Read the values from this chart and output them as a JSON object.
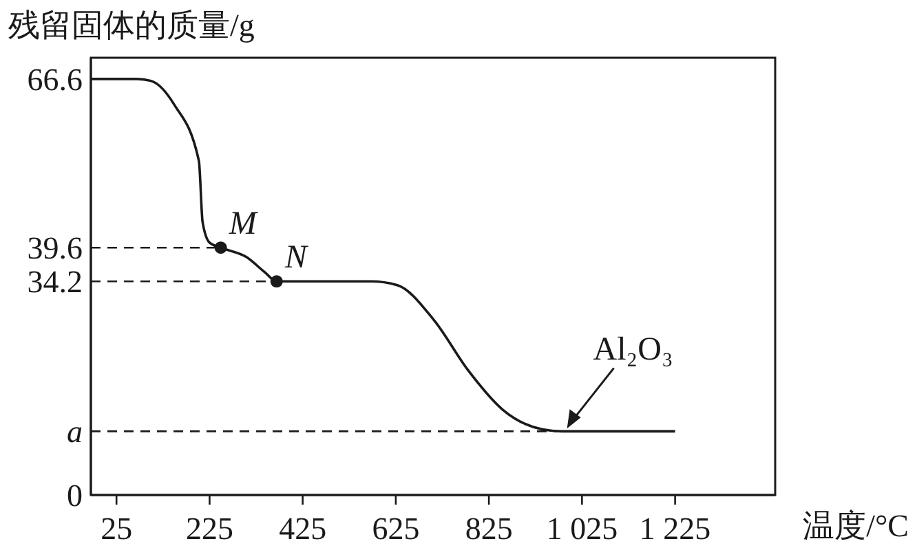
{
  "chart_data": {
    "type": "line",
    "ylabel": "残留固体的质量/g",
    "xlabel": "温度/°C",
    "xlim": [
      -30,
      1440
    ],
    "ylim": [
      0,
      70
    ],
    "xticks": [
      25,
      225,
      425,
      625,
      825,
      {
        "value": 1025,
        "label": "1 025"
      },
      {
        "value": 1225,
        "label": "1 225"
      }
    ],
    "yticks": [
      0,
      {
        "value": 10.2,
        "label": "a"
      },
      34.2,
      39.6,
      66.6
    ],
    "marker": "none",
    "line_style": "solid",
    "series": [
      {
        "color": "#1a1a1a",
        "x": [
          -30,
          25,
          69,
          99,
          149,
          202,
          210,
          225,
          249,
          304,
          343,
          369,
          572,
          628,
          707,
          781,
          854,
          940,
          981,
          1225
        ],
        "values": [
          66.6,
          66.6,
          66.6,
          66.3,
          62.5,
          53.5,
          43.7,
          40.4,
          39.6,
          38.1,
          35.7,
          34.2,
          34.2,
          33.6,
          28.0,
          19.9,
          13.7,
          10.5,
          10.2,
          10.2
        ]
      },
      {
        "type": "scatter",
        "color": "#1a1a1a",
        "marker": "circle",
        "x": [
          249,
          369
        ],
        "values": [
          39.6,
          34.2
        ]
      }
    ],
    "ref_lines": [
      {
        "axis": "y",
        "value": 39.6,
        "line_style": "dashed",
        "color": "#1a1a1a"
      },
      {
        "axis": "y",
        "value": 34.2,
        "line_style": "dashed",
        "color": "#1a1a1a"
      },
      {
        "axis": "y",
        "value": 10.2,
        "line_style": "dashed",
        "color": "#1a1a1a"
      }
    ],
    "annotations": [
      {
        "text": "M",
        "x": 249,
        "y": 39.6
      },
      {
        "text": "N",
        "x": 369,
        "y": 34.2
      },
      {
        "text": "Al₂O₃",
        "x": 981,
        "y": 10.2
      }
    ]
  }
}
